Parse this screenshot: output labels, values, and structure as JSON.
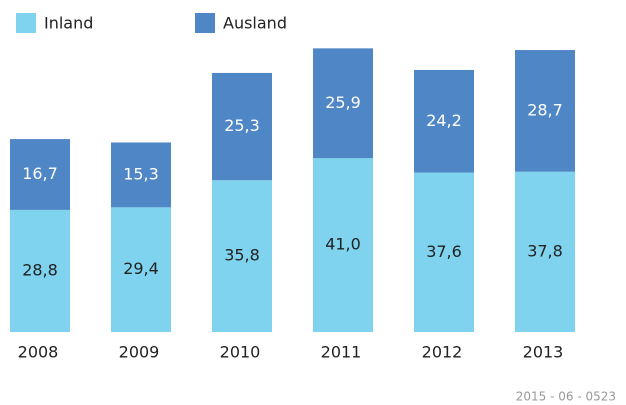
{
  "chart_data": {
    "type": "stacked-bar",
    "categories": [
      "2008",
      "2009",
      "2010",
      "2011",
      "2012",
      "2013"
    ],
    "series": [
      {
        "name": "Inland",
        "color": "#7fd3ee",
        "values": [
          28.8,
          29.4,
          35.8,
          41.0,
          37.6,
          37.8
        ],
        "value_labels": [
          "28,8",
          "29,4",
          "35,8",
          "41,0",
          "37,6",
          "37,8"
        ]
      },
      {
        "name": "Ausland",
        "color": "#4f86c6",
        "values": [
          16.7,
          15.3,
          25.3,
          25.9,
          24.2,
          28.7
        ],
        "value_labels": [
          "16,7",
          "15,3",
          "25,3",
          "25,9",
          "24,2",
          "28,7"
        ]
      }
    ],
    "source": "2015 - 06 - 0523"
  }
}
